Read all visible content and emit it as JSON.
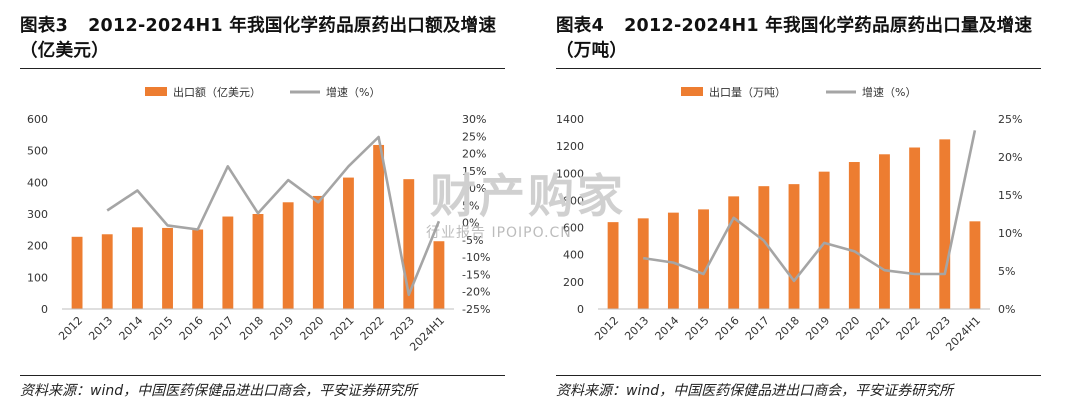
{
  "left": {
    "title_prefix": "图表3",
    "title_text": "2012-2024H1 年我国化学药品原药出口额及增速（亿美元）",
    "source": "资料来源：wind，中国医药保健品进出口商会，平安证券研究所",
    "chart_data": {
      "type": "bar+line",
      "categories": [
        "2012",
        "2013",
        "2014",
        "2015",
        "2016",
        "2017",
        "2018",
        "2019",
        "2020",
        "2021",
        "2022",
        "2023",
        "2024H1"
      ],
      "series": [
        {
          "name": "出口额（亿美元）",
          "type": "bar",
          "axis": "left",
          "color": "#ED7D31",
          "values": [
            228,
            236,
            258,
            256,
            251,
            292,
            300,
            337,
            357,
            415,
            518,
            410,
            214
          ]
        },
        {
          "name": "增速（%）",
          "type": "line",
          "axis": "right",
          "color": "#A5A5A5",
          "values": [
            null,
            3.5,
            9.3,
            -0.8,
            -2.0,
            16.3,
            2.7,
            12.3,
            5.9,
            16.3,
            24.8,
            -20.9,
            0.4
          ]
        }
      ],
      "left_axis": {
        "min": 0,
        "max": 600,
        "ticks": [
          "0",
          "100",
          "200",
          "300",
          "400",
          "500",
          "600"
        ]
      },
      "right_axis": {
        "min": -25,
        "max": 30,
        "ticks": [
          "-25%",
          "-20%",
          "-15%",
          "-10%",
          "-5%",
          "0%",
          "5%",
          "10%",
          "15%",
          "20%",
          "25%",
          "30%"
        ]
      },
      "legend_position": "top-center",
      "grid": false
    }
  },
  "right": {
    "title_prefix": "图表4",
    "title_text": "2012-2024H1 年我国化学药品原药出口量及增速（万吨）",
    "source": "资料来源：wind，中国医药保健品进出口商会，平安证券研究所",
    "chart_data": {
      "type": "bar+line",
      "categories": [
        "2012",
        "2013",
        "2014",
        "2015",
        "2016",
        "2017",
        "2018",
        "2019",
        "2020",
        "2021",
        "2022",
        "2023",
        "2024H1"
      ],
      "series": [
        {
          "name": "出口量（万吨）",
          "type": "bar",
          "axis": "left",
          "color": "#ED7D31",
          "values": [
            640,
            668,
            710,
            734,
            830,
            905,
            920,
            1012,
            1083,
            1140,
            1190,
            1250,
            646
          ]
        },
        {
          "name": "增速（%）",
          "type": "line",
          "axis": "right",
          "color": "#A5A5A5",
          "values": [
            null,
            6.7,
            6.1,
            4.6,
            12.0,
            9.0,
            3.7,
            8.7,
            7.6,
            5.1,
            4.6,
            4.6,
            23.5
          ]
        }
      ],
      "left_axis": {
        "min": 0,
        "max": 1400,
        "ticks": [
          "0",
          "200",
          "400",
          "600",
          "800",
          "1000",
          "1200",
          "1400"
        ]
      },
      "right_axis": {
        "min": 0,
        "max": 25,
        "ticks": [
          "0%",
          "5%",
          "10%",
          "15%",
          "20%",
          "25%"
        ]
      },
      "legend_position": "top-center",
      "grid": false
    }
  },
  "watermark": {
    "big": "财产购家",
    "small": "行业报告 IPOIPO.CN"
  }
}
